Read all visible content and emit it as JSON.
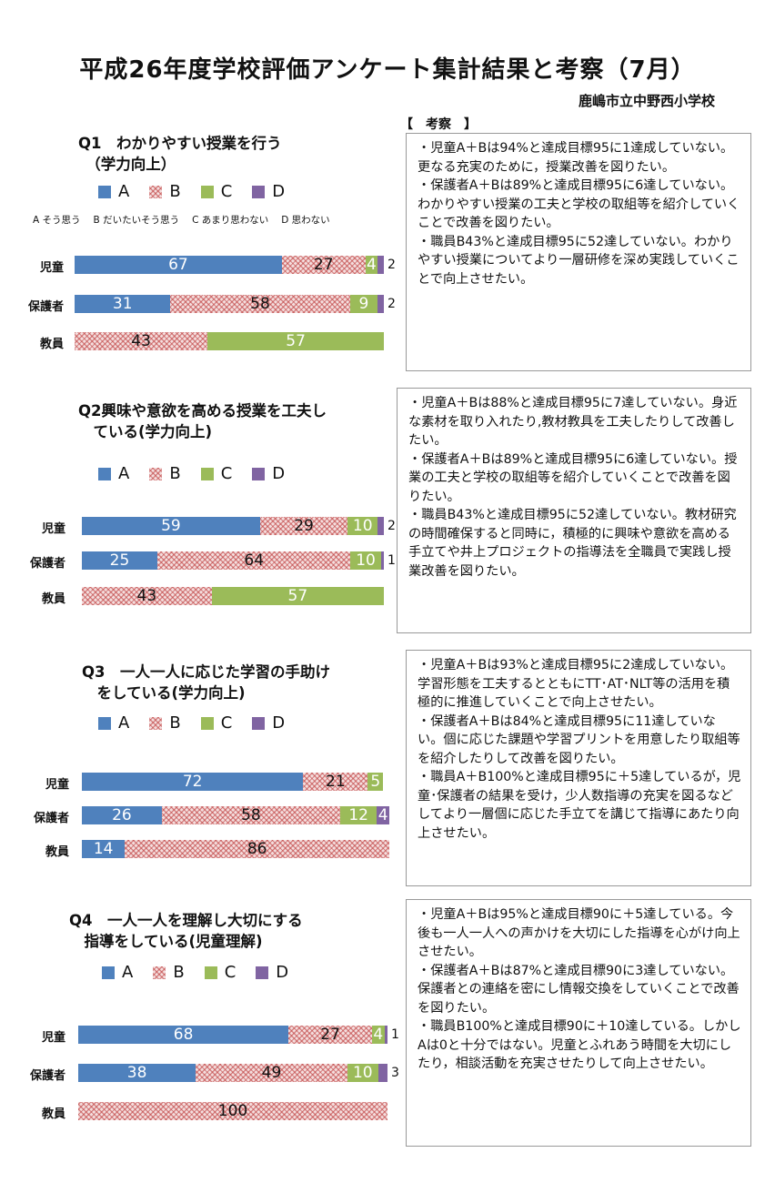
{
  "header": {
    "title": "平成26年度学校評価アンケート集計結果と考察（7月）",
    "school": "鹿嶋市立中野西小学校",
    "remarks_heading": "【　考察　】"
  },
  "legend": [
    {
      "key": "A",
      "label": "A",
      "color": "#4F81BD"
    },
    {
      "key": "B",
      "label": "B",
      "color": "#C0504D"
    },
    {
      "key": "C",
      "label": "C",
      "color": "#9BBB59"
    },
    {
      "key": "D",
      "label": "D",
      "color": "#8064A2"
    }
  ],
  "scale_note": [
    "A そう思う",
    "B だいたいそう思う",
    "C あまり思わない",
    "D 思わない"
  ],
  "chart_data": [
    {
      "type": "bar",
      "orientation": "horizontal-stacked",
      "title_lines": [
        "Q1　わかりやすい授業を行う",
        "　（学力向上）"
      ],
      "categories": [
        "児童",
        "保護者",
        "教員"
      ],
      "series": [
        {
          "name": "A",
          "values": [
            67,
            31,
            0
          ]
        },
        {
          "name": "B",
          "values": [
            27,
            58,
            43
          ]
        },
        {
          "name": "C",
          "values": [
            4,
            9,
            57
          ]
        },
        {
          "name": "D",
          "values": [
            2,
            2,
            0
          ]
        }
      ],
      "remarks": "・児童A＋Bは94%と達成目標95に1達成していない。更なる充実のために，授業改善を図りたい。\n・保護者A＋Bは89%と達成目標95に6達していない。わかりやすい授業の工夫と学校の取組等を紹介していくことで改善を図りたい。\n・職員B43%と達成目標95に52達していない。わかりやすい授業についてより一層研修を深め実践していくことで向上させたい。"
    },
    {
      "type": "bar",
      "orientation": "horizontal-stacked",
      "title_lines": [
        "Q2興味や意欲を高める授業を工夫し",
        "　ている(学力向上)"
      ],
      "categories": [
        "児童",
        "保護者",
        "教員"
      ],
      "series": [
        {
          "name": "A",
          "values": [
            59,
            25,
            0
          ]
        },
        {
          "name": "B",
          "values": [
            29,
            64,
            43
          ]
        },
        {
          "name": "C",
          "values": [
            10,
            10,
            57
          ]
        },
        {
          "name": "D",
          "values": [
            2,
            1,
            0
          ]
        }
      ],
      "remarks": "・児童A＋Bは88%と達成目標95に7達していない。身近な素材を取り入れたり,教材教具を工夫したりして改善したい。\n・保護者A＋Bは89%と達成目標95に6達していない。授業の工夫と学校の取組等を紹介していくことで改善を図りたい。\n・職員B43%と達成目標95に52達していない。教材研究の時間確保すると同時に，積極的に興味や意欲を高める手立てや井上プロジェクトの指導法を全職員で実践し授業改善を図りたい。"
    },
    {
      "type": "bar",
      "orientation": "horizontal-stacked",
      "title_lines": [
        "Q3　一人一人に応じた学習の手助け",
        "　をしている(学力向上)"
      ],
      "categories": [
        "児童",
        "保護者",
        "教員"
      ],
      "series": [
        {
          "name": "A",
          "values": [
            72,
            26,
            14
          ]
        },
        {
          "name": "B",
          "values": [
            21,
            58,
            86
          ]
        },
        {
          "name": "C",
          "values": [
            5,
            12,
            0
          ]
        },
        {
          "name": "D",
          "values": [
            0,
            4,
            0
          ]
        }
      ],
      "remarks": "・児童A＋Bは93%と達成目標95に2達成していない。学習形態を工夫するとともにTT･AT･NLT等の活用を積極的に推進していくことで向上させたい。\n・保護者A＋Bは84%と達成目標95に11達していない。個に応じた課題や学習プリントを用意したり取組等を紹介したりして改善を図りたい。\n・職員A＋B100%と達成目標95に＋5達しているが，児童･保護者の結果を受け，少人数指導の充実を図るなどしてより一層個に応じた手立てを講じて指導にあたり向上させたい。"
    },
    {
      "type": "bar",
      "orientation": "horizontal-stacked",
      "title_lines": [
        "Q4　一人一人を理解し大切にする",
        "　指導をしている(児童理解)"
      ],
      "categories": [
        "児童",
        "保護者",
        "教員"
      ],
      "series": [
        {
          "name": "A",
          "values": [
            68,
            38,
            0
          ]
        },
        {
          "name": "B",
          "values": [
            27,
            49,
            100
          ]
        },
        {
          "name": "C",
          "values": [
            4,
            10,
            0
          ]
        },
        {
          "name": "D",
          "values": [
            1,
            3,
            0
          ]
        }
      ],
      "remarks": "・児童A＋Bは95%と達成目標90に＋5達している。今後も一人一人への声かけを大切にした指導を心がけ向上させたい。\n・保護者A＋Bは87%と達成目標90に3達していない。保護者との連絡を密にし情報交換をしていくことで改善を図りたい。\n・職員B100%と達成目標90に＋10達している。しかしAは0と十分ではない。児童とふれあう時間を大切にしたり，相談活動を充実させたりして向上させたい。"
    }
  ]
}
